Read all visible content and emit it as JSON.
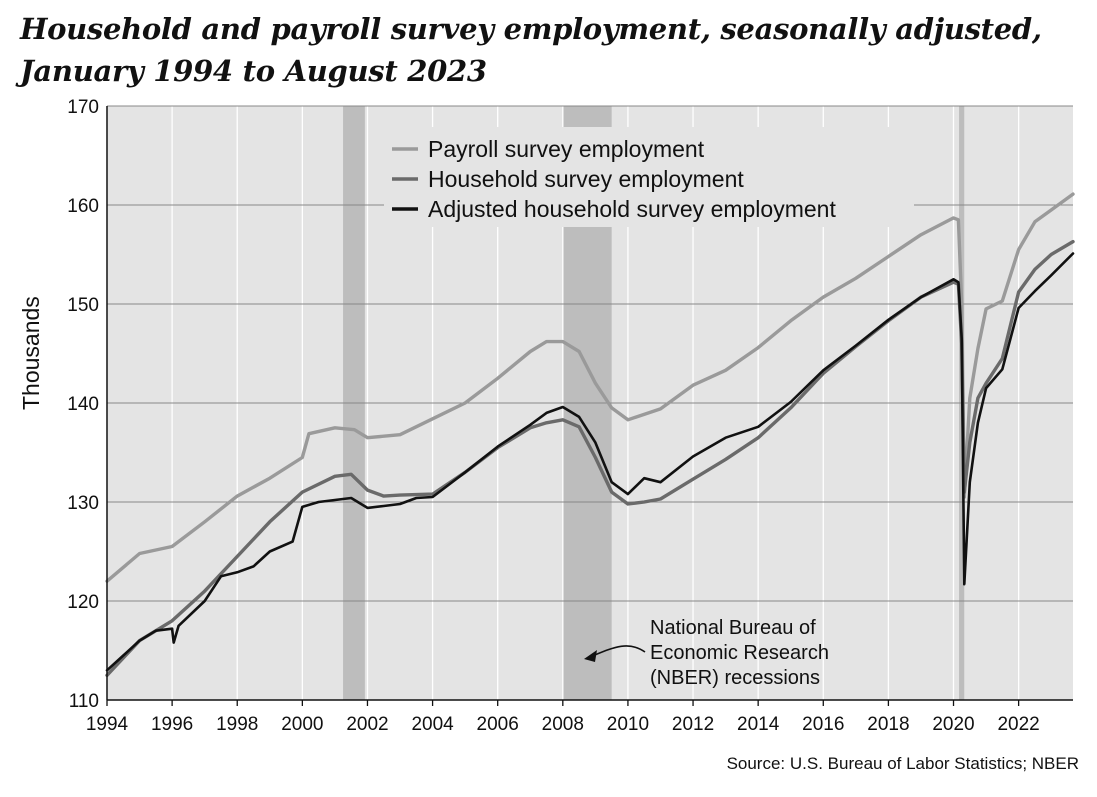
{
  "title": {
    "line1": "Household and payroll survey employment, seasonally adjusted,",
    "line2": "January 1994 to August 2023"
  },
  "source": "Source: U.S. Bureau of Labor Statistics; NBER",
  "chart_data": {
    "type": "line",
    "ylabel": "Thousands",
    "xlabel": "",
    "xlim": [
      1994,
      2023.67
    ],
    "ylim": [
      110,
      170
    ],
    "x_ticks": [
      "1994",
      "1996",
      "1998",
      "2000",
      "2002",
      "2004",
      "2006",
      "2008",
      "2010",
      "2012",
      "2014",
      "2016",
      "2018",
      "2020",
      "2022"
    ],
    "y_ticks": [
      "110",
      "120",
      "130",
      "140",
      "150",
      "160",
      "170"
    ],
    "grid": true,
    "legend_position": "top-center",
    "recessions": [
      {
        "start": 2001.25,
        "end": 2001.92
      },
      {
        "start": 2008.0,
        "end": 2009.5
      },
      {
        "start": 2020.17,
        "end": 2020.33
      }
    ],
    "annotation": {
      "lines": [
        "National Bureau of",
        "Economic Research",
        "(NBER) recessions"
      ]
    },
    "series": [
      {
        "name": "Payroll survey employment",
        "color": "#9a9a9a",
        "points": [
          [
            1994,
            122
          ],
          [
            1995,
            124.8
          ],
          [
            1996,
            125.5
          ],
          [
            1997,
            128
          ],
          [
            1998,
            130.6
          ],
          [
            1999,
            132.4
          ],
          [
            2000,
            134.5
          ],
          [
            2000.2,
            136.9
          ],
          [
            2001,
            137.5
          ],
          [
            2001.6,
            137.3
          ],
          [
            2002,
            136.5
          ],
          [
            2003,
            136.8
          ],
          [
            2004,
            138.4
          ],
          [
            2005,
            140
          ],
          [
            2006,
            142.5
          ],
          [
            2007,
            145.2
          ],
          [
            2007.5,
            146.2
          ],
          [
            2008,
            146.2
          ],
          [
            2008.5,
            145.2
          ],
          [
            2009,
            142
          ],
          [
            2009.5,
            139.5
          ],
          [
            2010,
            138.3
          ],
          [
            2011,
            139.4
          ],
          [
            2012,
            141.8
          ],
          [
            2013,
            143.3
          ],
          [
            2014,
            145.6
          ],
          [
            2015,
            148.3
          ],
          [
            2016,
            150.7
          ],
          [
            2017,
            152.6
          ],
          [
            2018,
            154.8
          ],
          [
            2019,
            157
          ],
          [
            2020,
            158.7
          ],
          [
            2020.15,
            158.5
          ],
          [
            2020.25,
            150
          ],
          [
            2020.33,
            130.5
          ],
          [
            2020.5,
            140.5
          ],
          [
            2020.75,
            145.5
          ],
          [
            2021,
            149.5
          ],
          [
            2021.5,
            150.3
          ],
          [
            2022,
            155.5
          ],
          [
            2022.5,
            158.3
          ],
          [
            2023,
            159.5
          ],
          [
            2023.67,
            161.1
          ]
        ]
      },
      {
        "name": "Household survey employment",
        "color": "#6a6a6a",
        "points": [
          [
            1994,
            112.5
          ],
          [
            1995,
            116
          ],
          [
            1996,
            118
          ],
          [
            1997,
            121
          ],
          [
            1998,
            124.5
          ],
          [
            1999,
            128
          ],
          [
            2000,
            131
          ],
          [
            2001,
            132.6
          ],
          [
            2001.5,
            132.8
          ],
          [
            2002,
            131.2
          ],
          [
            2002.5,
            130.6
          ],
          [
            2003,
            130.7
          ],
          [
            2004,
            130.8
          ],
          [
            2005,
            133
          ],
          [
            2006,
            135.5
          ],
          [
            2007,
            137.5
          ],
          [
            2007.5,
            138
          ],
          [
            2008,
            138.3
          ],
          [
            2008.5,
            137.6
          ],
          [
            2009,
            134.5
          ],
          [
            2009.5,
            131
          ],
          [
            2010,
            129.8
          ],
          [
            2010.5,
            130
          ],
          [
            2011,
            130.3
          ],
          [
            2012,
            132.3
          ],
          [
            2013,
            134.3
          ],
          [
            2014,
            136.5
          ],
          [
            2015,
            139.5
          ],
          [
            2016,
            143
          ],
          [
            2017,
            145.7
          ],
          [
            2018,
            148.3
          ],
          [
            2019,
            150.7
          ],
          [
            2020,
            152.2
          ],
          [
            2020.15,
            152
          ],
          [
            2020.25,
            146
          ],
          [
            2020.33,
            131
          ],
          [
            2020.5,
            136
          ],
          [
            2020.75,
            140.5
          ],
          [
            2021,
            142
          ],
          [
            2021.5,
            144.5
          ],
          [
            2022,
            151.2
          ],
          [
            2022.5,
            153.5
          ],
          [
            2023,
            155
          ],
          [
            2023.67,
            156.3
          ]
        ]
      },
      {
        "name": "Adjusted household survey employment",
        "color": "#111111",
        "points": [
          [
            1994,
            113
          ],
          [
            1994.5,
            114.5
          ],
          [
            1995,
            116
          ],
          [
            1995.5,
            117
          ],
          [
            1996,
            117.2
          ],
          [
            1996.05,
            115.8
          ],
          [
            1996.2,
            117.5
          ],
          [
            1997,
            120
          ],
          [
            1997.5,
            122.5
          ],
          [
            1998,
            122.9
          ],
          [
            1998.5,
            123.5
          ],
          [
            1999,
            125
          ],
          [
            1999.7,
            126
          ],
          [
            2000,
            129.5
          ],
          [
            2000.5,
            130
          ],
          [
            2001,
            130.2
          ],
          [
            2001.5,
            130.4
          ],
          [
            2002,
            129.4
          ],
          [
            2002.5,
            129.6
          ],
          [
            2003,
            129.8
          ],
          [
            2003.5,
            130.4
          ],
          [
            2004,
            130.5
          ],
          [
            2005,
            133
          ],
          [
            2006,
            135.6
          ],
          [
            2007,
            137.8
          ],
          [
            2007.5,
            139
          ],
          [
            2008,
            139.6
          ],
          [
            2008.5,
            138.6
          ],
          [
            2009,
            136
          ],
          [
            2009.5,
            132
          ],
          [
            2010,
            130.8
          ],
          [
            2010.5,
            132.4
          ],
          [
            2011,
            132
          ],
          [
            2012,
            134.6
          ],
          [
            2013,
            136.5
          ],
          [
            2014,
            137.6
          ],
          [
            2015,
            140.1
          ],
          [
            2016,
            143.3
          ],
          [
            2017,
            145.8
          ],
          [
            2018,
            148.4
          ],
          [
            2019,
            150.7
          ],
          [
            2020,
            152.5
          ],
          [
            2020.15,
            152.2
          ],
          [
            2020.25,
            146.5
          ],
          [
            2020.33,
            121.7
          ],
          [
            2020.5,
            132
          ],
          [
            2020.75,
            138
          ],
          [
            2021,
            141.5
          ],
          [
            2021.5,
            143.4
          ],
          [
            2022,
            149.6
          ],
          [
            2022.5,
            151.3
          ],
          [
            2023,
            152.9
          ],
          [
            2023.67,
            155.1
          ]
        ]
      }
    ]
  }
}
